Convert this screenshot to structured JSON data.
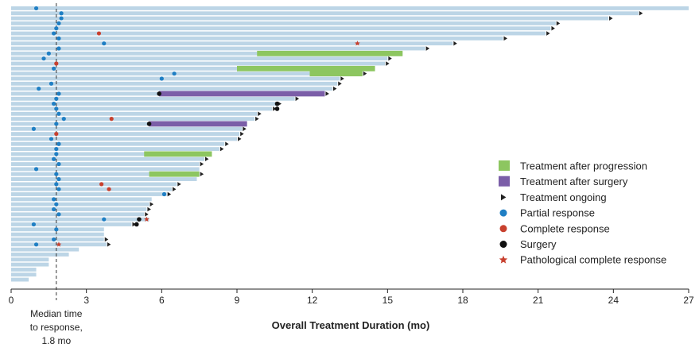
{
  "chart_data": {
    "type": "swimmer",
    "xlabel": "Overall Treatment Duration (mo)",
    "xlim": [
      0,
      27
    ],
    "xticks": [
      0,
      3,
      6,
      9,
      12,
      15,
      18,
      21,
      24,
      27
    ],
    "grid": false,
    "legend_position": "right",
    "median_time_to_response": 1.8,
    "median_label_lines": [
      "Median time",
      "to response,",
      "1.8 mo"
    ],
    "colors": {
      "bar": "#bcd5e6",
      "treatment_after_progression": "#8dc660",
      "treatment_after_surgery": "#7b5ea8",
      "partial_response": "#1f7fc4",
      "complete_response": "#c8402e",
      "surgery": "#111111",
      "pathological_complete_response": "#c8402e",
      "ongoing": "#222222"
    },
    "legend": [
      {
        "key": "treatment_after_progression",
        "label": "Treatment after progression",
        "symbol": "square"
      },
      {
        "key": "treatment_after_surgery",
        "label": "Treatment after surgery",
        "symbol": "square"
      },
      {
        "key": "ongoing",
        "label": "Treatment ongoing",
        "symbol": "triangle"
      },
      {
        "key": "partial_response",
        "label": "Partial response",
        "symbol": "circle"
      },
      {
        "key": "complete_response",
        "label": "Complete response",
        "symbol": "circle"
      },
      {
        "key": "surgery",
        "label": "Surgery",
        "symbol": "circle"
      },
      {
        "key": "pathological_complete_response",
        "label": "Pathological complete response",
        "symbol": "star"
      }
    ],
    "patients": [
      {
        "duration": 27.0,
        "ongoing": false,
        "pr": 1.0
      },
      {
        "duration": 25.0,
        "ongoing": true,
        "pr": 2.0
      },
      {
        "duration": 23.8,
        "ongoing": true,
        "pr": 2.0
      },
      {
        "duration": 21.7,
        "ongoing": true,
        "pr": 1.9
      },
      {
        "duration": 21.5,
        "ongoing": true,
        "pr": 1.8
      },
      {
        "duration": 21.3,
        "ongoing": true,
        "pr": 1.7,
        "cr": 3.5
      },
      {
        "duration": 19.6,
        "ongoing": true,
        "pr": 1.9
      },
      {
        "duration": 17.6,
        "ongoing": true,
        "pr": 3.7,
        "pcr": 13.8
      },
      {
        "duration": 16.5,
        "ongoing": true,
        "pr": 1.9
      },
      {
        "duration": 15.6,
        "ongoing": false,
        "pr": 1.5,
        "progression": [
          9.8,
          15.6
        ]
      },
      {
        "duration": 15.0,
        "ongoing": true,
        "pr": 1.3
      },
      {
        "duration": 14.9,
        "ongoing": true,
        "cr": 1.8
      },
      {
        "duration": 14.5,
        "ongoing": false,
        "pr": 1.7,
        "progression": [
          9.0,
          14.5
        ]
      },
      {
        "duration": 14.0,
        "ongoing": true,
        "pr": 6.5,
        "progression": [
          11.9,
          14.0
        ]
      },
      {
        "duration": 13.1,
        "ongoing": true,
        "pr": 6.0
      },
      {
        "duration": 13.0,
        "ongoing": true,
        "pr": 1.6
      },
      {
        "duration": 12.8,
        "ongoing": true,
        "pr": 1.1
      },
      {
        "duration": 12.5,
        "ongoing": true,
        "pr": 1.9,
        "surgery_time": 5.9,
        "post_surgery": [
          5.9,
          12.5
        ]
      },
      {
        "duration": 11.3,
        "ongoing": true,
        "pr": 1.8
      },
      {
        "duration": 10.6,
        "ongoing": true,
        "pr": 1.7,
        "surgery_time": 10.6
      },
      {
        "duration": 10.4,
        "ongoing": true,
        "pr": 1.8,
        "surgery_time": 10.6
      },
      {
        "duration": 9.8,
        "ongoing": true,
        "pr": 1.9
      },
      {
        "duration": 9.7,
        "ongoing": true,
        "pr": 2.1,
        "cr": 4.0
      },
      {
        "duration": 9.4,
        "ongoing": false,
        "pr": 1.8,
        "surgery_time": 5.5,
        "post_surgery": [
          5.5,
          9.4
        ]
      },
      {
        "duration": 9.2,
        "ongoing": true,
        "pr": 0.9
      },
      {
        "duration": 9.1,
        "ongoing": true,
        "cr": 1.8
      },
      {
        "duration": 9.0,
        "ongoing": true,
        "pr": 1.6
      },
      {
        "duration": 8.5,
        "ongoing": true,
        "pr": 1.9
      },
      {
        "duration": 8.3,
        "ongoing": true,
        "pr": 1.8
      },
      {
        "duration": 8.0,
        "ongoing": false,
        "pr": 1.8,
        "progression": [
          5.3,
          8.0
        ]
      },
      {
        "duration": 7.7,
        "ongoing": true,
        "pr": 1.7
      },
      {
        "duration": 7.5,
        "ongoing": true,
        "pr": 1.9
      },
      {
        "duration": 7.5,
        "ongoing": false,
        "pr": 1.0
      },
      {
        "duration": 7.5,
        "ongoing": true,
        "pr": 1.8,
        "progression": [
          5.5,
          7.5
        ]
      },
      {
        "duration": 7.4,
        "ongoing": false,
        "pr": 1.9
      },
      {
        "duration": 6.6,
        "ongoing": true,
        "pr": 1.8,
        "cr": 3.6
      },
      {
        "duration": 6.4,
        "ongoing": true,
        "pr": 1.9,
        "cr": 3.9
      },
      {
        "duration": 6.2,
        "ongoing": true,
        "pr": 6.1
      },
      {
        "duration": 5.6,
        "ongoing": false,
        "pr": 1.7
      },
      {
        "duration": 5.5,
        "ongoing": true,
        "pr": 1.8
      },
      {
        "duration": 5.4,
        "ongoing": true,
        "pr": 1.7
      },
      {
        "duration": 5.3,
        "ongoing": true,
        "pr": 1.9
      },
      {
        "duration": 5.5,
        "ongoing": false,
        "pr": 3.7,
        "pcr": 5.4,
        "surgery_time": 5.1
      },
      {
        "duration": 4.8,
        "ongoing": true,
        "pr": 0.9,
        "surgery_time": 5.0
      },
      {
        "duration": 3.7,
        "ongoing": false,
        "pr": 1.8
      },
      {
        "duration": 3.7,
        "ongoing": false
      },
      {
        "duration": 3.7,
        "ongoing": true,
        "pr": 1.7
      },
      {
        "duration": 3.8,
        "ongoing": true,
        "pr": 1.0,
        "pcr": 1.9
      },
      {
        "duration": 2.7,
        "ongoing": false
      },
      {
        "duration": 2.3,
        "ongoing": false
      },
      {
        "duration": 1.5,
        "ongoing": false
      },
      {
        "duration": 1.5,
        "ongoing": false
      },
      {
        "duration": 1.0,
        "ongoing": false
      },
      {
        "duration": 1.0,
        "ongoing": false
      },
      {
        "duration": 0.7,
        "ongoing": false
      }
    ]
  }
}
